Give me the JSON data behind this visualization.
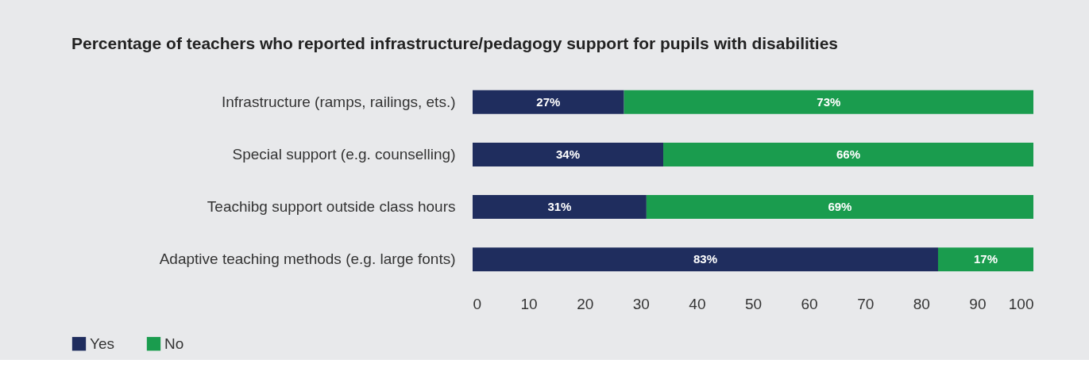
{
  "chart_data": {
    "type": "bar",
    "orientation": "horizontal",
    "stacked": true,
    "title": "Percentage of teachers who reported infrastructure/pedagogy support for pupils with disabilities",
    "categories": [
      "Infrastructure (ramps, railings, ets.)",
      "Special support (e.g. counselling)",
      "Teachibg support outside class hours",
      "Adaptive teaching methods (e.g. large fonts)"
    ],
    "series": [
      {
        "name": "Yes",
        "color": "#1f2d5e",
        "values": [
          27,
          34,
          31,
          83
        ],
        "value_labels": [
          "27%",
          "34%",
          "31%",
          "83%"
        ]
      },
      {
        "name": "No",
        "color": "#1a9c4e",
        "values": [
          73,
          66,
          69,
          17
        ],
        "value_labels": [
          "73%",
          "66%",
          "69%",
          "17%"
        ]
      }
    ],
    "xlim": [
      0,
      100
    ],
    "xticks": [
      0,
      10,
      20,
      30,
      40,
      50,
      60,
      70,
      80,
      90,
      100
    ],
    "grid": false,
    "legend": "bottom left"
  }
}
